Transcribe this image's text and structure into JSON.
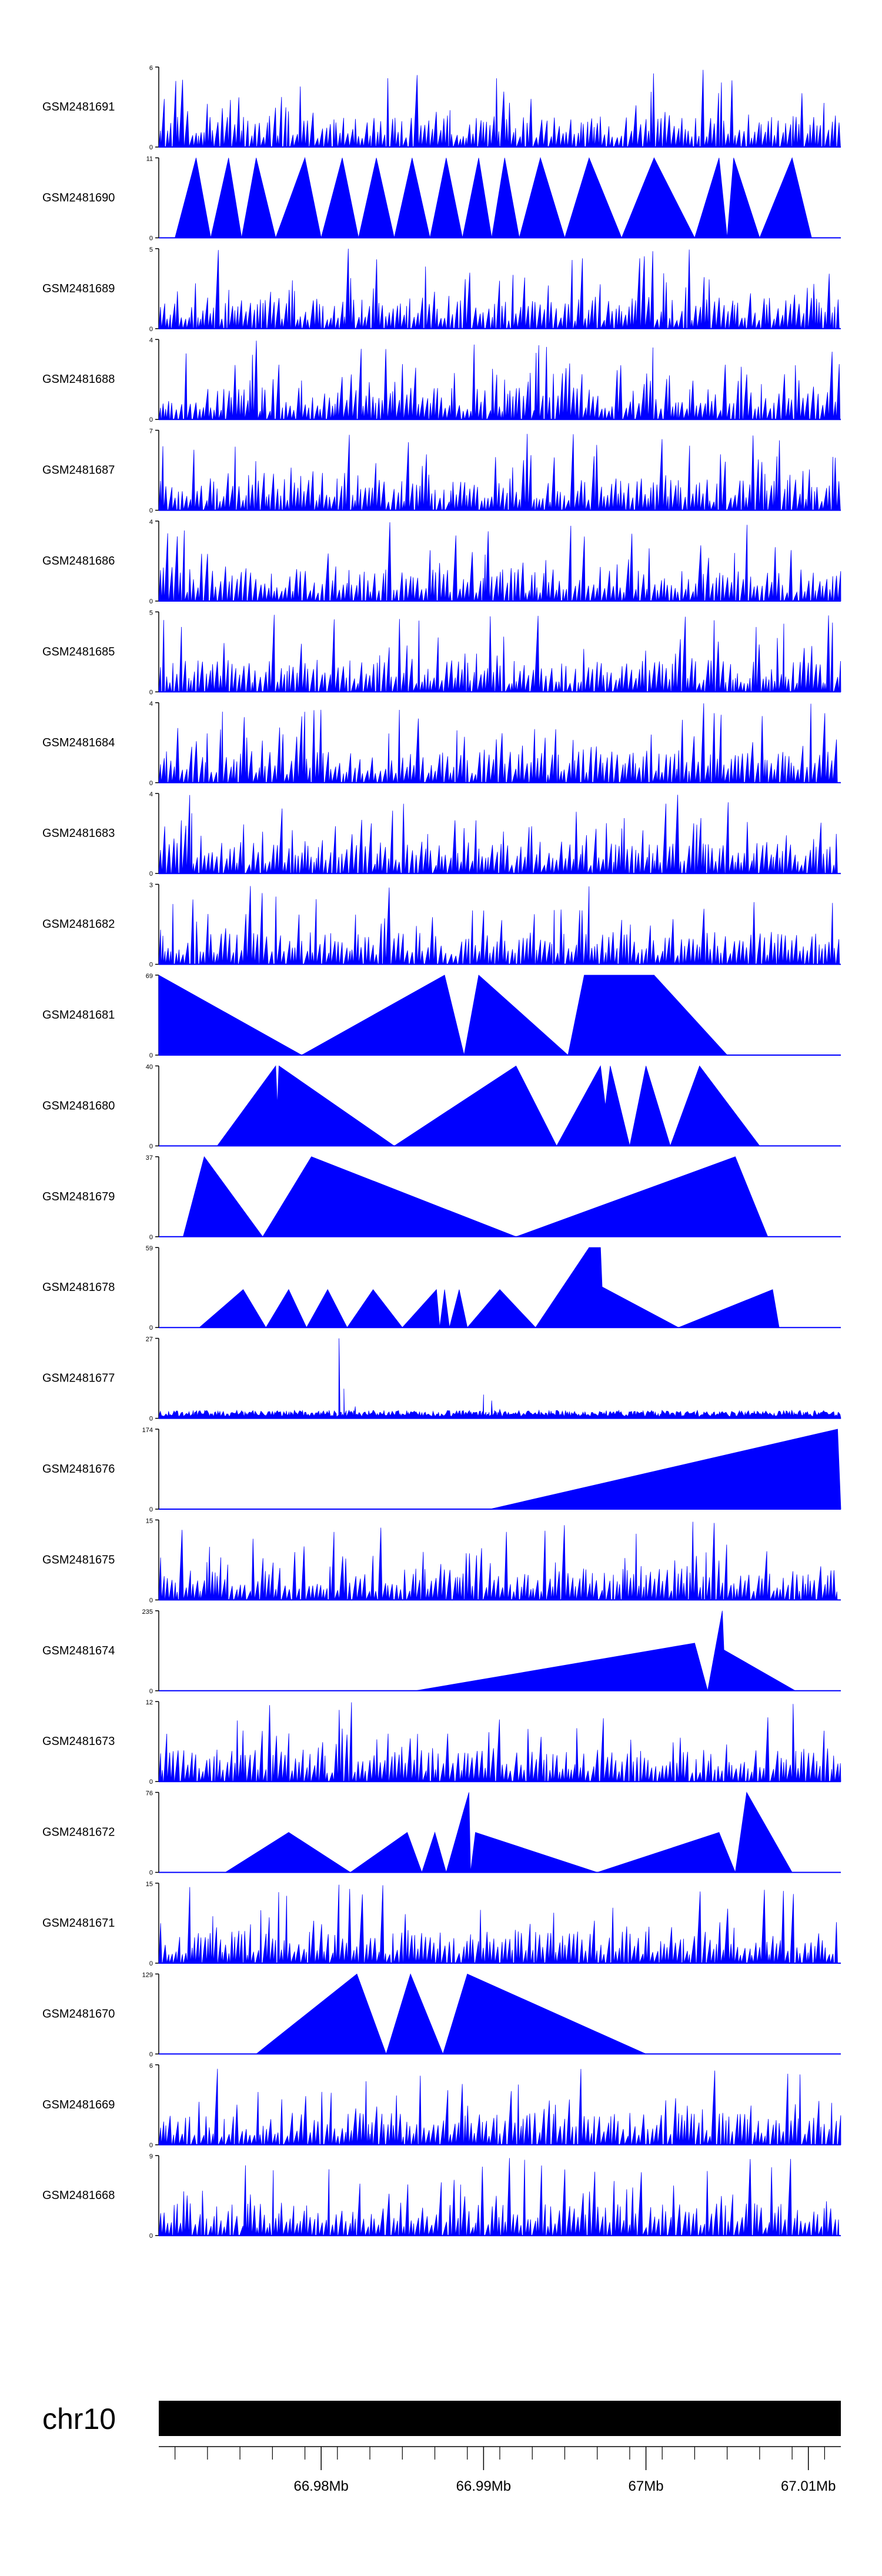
{
  "chart_data": {
    "type": "area",
    "description_free": true,
    "chromosome": "chr10",
    "x_range": [
      66.97,
      67.012
    ],
    "x_unit": "Mb",
    "x_ticks": [
      {
        "value": 66.98,
        "label": "66.98Mb"
      },
      {
        "value": 66.99,
        "label": "66.99Mb"
      },
      {
        "value": 67.0,
        "label": "67Mb"
      },
      {
        "value": 67.01,
        "label": "67.01Mb"
      }
    ],
    "tracks": [
      {
        "name": "GSM2481691",
        "ymax": "6",
        "max": 6,
        "style": "dense",
        "seed": 11
      },
      {
        "name": "GSM2481690",
        "ymax": "11",
        "max": 11,
        "style": "points",
        "points": [
          [
            66.971,
            0
          ],
          [
            66.9723,
            11
          ],
          [
            66.9732,
            0
          ],
          [
            66.9743,
            11
          ],
          [
            66.9751,
            0
          ],
          [
            66.976,
            11
          ],
          [
            66.9772,
            0
          ],
          [
            66.979,
            11
          ],
          [
            66.98,
            0
          ],
          [
            66.9813,
            11
          ],
          [
            66.9823,
            0
          ],
          [
            66.9834,
            11
          ],
          [
            66.9845,
            0
          ],
          [
            66.9856,
            11
          ],
          [
            66.9867,
            0
          ],
          [
            66.9877,
            11
          ],
          [
            66.9887,
            0
          ],
          [
            66.9897,
            11
          ],
          [
            66.9905,
            0
          ],
          [
            66.9913,
            11
          ],
          [
            66.9922,
            0
          ],
          [
            66.9935,
            11
          ],
          [
            66.995,
            0
          ],
          [
            66.9965,
            11
          ],
          [
            66.9985,
            0
          ],
          [
            67.0005,
            11
          ],
          [
            67.003,
            0
          ],
          [
            67.0045,
            11
          ],
          [
            67.005,
            0
          ],
          [
            67.0054,
            11
          ],
          [
            67.007,
            0
          ],
          [
            67.009,
            11
          ],
          [
            67.0102,
            0
          ]
        ]
      },
      {
        "name": "GSM2481689",
        "ymax": "5",
        "max": 5,
        "style": "dense",
        "seed": 23
      },
      {
        "name": "GSM2481688",
        "ymax": "4",
        "max": 4,
        "style": "dense",
        "seed": 37
      },
      {
        "name": "GSM2481687",
        "ymax": "7",
        "max": 7,
        "style": "dense",
        "seed": 41
      },
      {
        "name": "GSM2481686",
        "ymax": "4",
        "max": 4,
        "style": "dense",
        "seed": 53
      },
      {
        "name": "GSM2481685",
        "ymax": "5",
        "max": 5,
        "style": "dense",
        "seed": 67
      },
      {
        "name": "GSM2481684",
        "ymax": "4",
        "max": 4,
        "style": "dense",
        "seed": 71
      },
      {
        "name": "GSM2481683",
        "ymax": "4",
        "max": 4,
        "style": "dense",
        "seed": 83
      },
      {
        "name": "GSM2481682",
        "ymax": "3",
        "max": 3,
        "style": "dense",
        "seed": 97
      },
      {
        "name": "GSM2481681",
        "ymax": "69",
        "max": 69,
        "style": "points",
        "points": [
          [
            66.97,
            69
          ],
          [
            66.9788,
            0
          ],
          [
            66.9876,
            69
          ],
          [
            66.9888,
            0
          ],
          [
            66.9897,
            69
          ],
          [
            66.9952,
            0
          ],
          [
            66.9962,
            69
          ],
          [
            67.0005,
            69
          ],
          [
            67.005,
            0
          ]
        ]
      },
      {
        "name": "GSM2481680",
        "ymax": "40",
        "max": 40,
        "style": "points",
        "points": [
          [
            66.9736,
            0
          ],
          [
            66.9772,
            40
          ],
          [
            66.9773,
            20
          ],
          [
            66.9774,
            40
          ],
          [
            66.9845,
            0
          ],
          [
            66.992,
            40
          ],
          [
            66.9945,
            0
          ],
          [
            66.9972,
            40
          ],
          [
            66.9975,
            20
          ],
          [
            66.9978,
            40
          ],
          [
            66.999,
            0
          ],
          [
            67.0,
            40
          ],
          [
            67.0015,
            0
          ],
          [
            67.0033,
            40
          ],
          [
            67.007,
            0
          ]
        ]
      },
      {
        "name": "GSM2481679",
        "ymax": "37",
        "max": 37,
        "style": "points",
        "points": [
          [
            66.9715,
            0
          ],
          [
            66.9728,
            37
          ],
          [
            66.9764,
            0
          ],
          [
            66.9794,
            37
          ],
          [
            66.992,
            0
          ],
          [
            67.0055,
            37
          ],
          [
            67.0075,
            0
          ]
        ]
      },
      {
        "name": "GSM2481678",
        "ymax": "59",
        "max": 59,
        "style": "points",
        "points": [
          [
            66.9725,
            0
          ],
          [
            66.9752,
            28
          ],
          [
            66.9766,
            0
          ],
          [
            66.978,
            28
          ],
          [
            66.9791,
            0
          ],
          [
            66.9804,
            28
          ],
          [
            66.9816,
            0
          ],
          [
            66.9832,
            28
          ],
          [
            66.985,
            0
          ],
          [
            66.9871,
            28
          ],
          [
            66.9873,
            0
          ],
          [
            66.9876,
            28
          ],
          [
            66.9879,
            0
          ],
          [
            66.9885,
            28
          ],
          [
            66.989,
            0
          ],
          [
            66.991,
            28
          ],
          [
            66.9932,
            0
          ],
          [
            66.9965,
            59
          ],
          [
            66.9972,
            59
          ],
          [
            66.9973,
            30
          ],
          [
            67.002,
            0
          ],
          [
            67.0078,
            28
          ],
          [
            67.0082,
            0
          ]
        ]
      },
      {
        "name": "GSM2481677",
        "ymax": "27",
        "max": 27,
        "style": "spiky",
        "seed": 113,
        "spikes": [
          [
            66.9811,
            27
          ],
          [
            66.9814,
            10
          ],
          [
            66.9821,
            4
          ],
          [
            66.99,
            8
          ],
          [
            66.9905,
            6
          ],
          [
            66.991,
            3
          ]
        ]
      },
      {
        "name": "GSM2481676",
        "ymax": "174",
        "max": 174,
        "style": "points",
        "points": [
          [
            66.9904,
            0
          ],
          [
            67.0118,
            174
          ],
          [
            67.012,
            0
          ]
        ]
      },
      {
        "name": "GSM2481675",
        "ymax": "15",
        "max": 15,
        "style": "dense",
        "seed": 131
      },
      {
        "name": "GSM2481674",
        "ymax": "235",
        "max": 235,
        "style": "points",
        "points": [
          [
            66.9858,
            0
          ],
          [
            67.003,
            140
          ],
          [
            67.0038,
            0
          ],
          [
            67.0047,
            235
          ],
          [
            67.0048,
            120
          ],
          [
            67.0092,
            0
          ]
        ]
      },
      {
        "name": "GSM2481673",
        "ymax": "12",
        "max": 12,
        "style": "dense",
        "seed": 149
      },
      {
        "name": "GSM2481672",
        "ymax": "76",
        "max": 76,
        "style": "points",
        "points": [
          [
            66.9741,
            0
          ],
          [
            66.978,
            38
          ],
          [
            66.9818,
            0
          ],
          [
            66.9853,
            38
          ],
          [
            66.9862,
            0
          ],
          [
            66.987,
            38
          ],
          [
            66.9877,
            0
          ],
          [
            66.9888,
            60
          ],
          [
            66.9891,
            76
          ],
          [
            66.9892,
            0
          ],
          [
            66.9895,
            38
          ],
          [
            66.997,
            0
          ],
          [
            67.0045,
            38
          ],
          [
            67.0055,
            0
          ],
          [
            67.0062,
            76
          ],
          [
            67.009,
            0
          ]
        ]
      },
      {
        "name": "GSM2481671",
        "ymax": "15",
        "max": 15,
        "style": "dense",
        "seed": 163
      },
      {
        "name": "GSM2481670",
        "ymax": "129",
        "max": 129,
        "style": "points",
        "points": [
          [
            66.976,
            0
          ],
          [
            66.9822,
            129
          ],
          [
            66.984,
            0
          ],
          [
            66.9855,
            129
          ],
          [
            66.9875,
            0
          ],
          [
            66.989,
            129
          ],
          [
            67.0,
            0
          ]
        ]
      },
      {
        "name": "GSM2481669",
        "ymax": "6",
        "max": 6,
        "style": "dense",
        "seed": 179
      },
      {
        "name": "GSM2481668",
        "ymax": "9",
        "max": 9,
        "style": "dense",
        "seed": 191
      }
    ]
  }
}
